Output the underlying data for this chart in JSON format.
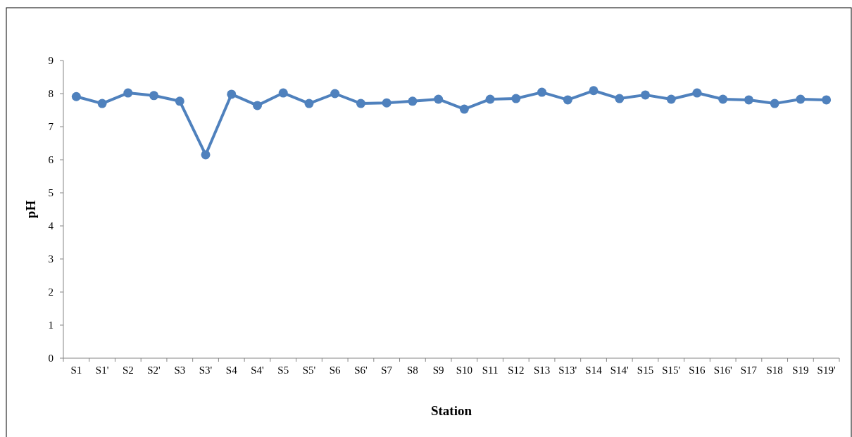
{
  "chart_data": {
    "type": "line",
    "xlabel": "Station",
    "ylabel": "pH",
    "categories": [
      "S1",
      "S1'",
      "S2",
      "S2'",
      "S3",
      "S3'",
      "S4",
      "S4'",
      "S5",
      "S5'",
      "S6",
      "S6'",
      "S7",
      "S8",
      "S9",
      "S10",
      "S11",
      "S12",
      "S13",
      "S13'",
      "S14",
      "S14'",
      "S15",
      "S15'",
      "S16",
      "S16'",
      "S17",
      "S18",
      "S19",
      "S19'"
    ],
    "series": [
      {
        "color": "#4f81bd",
        "values": [
          7.91,
          7.7,
          8.02,
          7.94,
          7.77,
          6.15,
          7.98,
          7.64,
          8.02,
          7.7,
          8.0,
          7.7,
          7.72,
          7.77,
          7.83,
          7.53,
          7.83,
          7.85,
          8.04,
          7.81,
          8.09,
          7.85,
          7.96,
          7.83,
          8.02,
          7.83,
          7.81,
          7.7,
          7.83,
          7.81
        ]
      }
    ],
    "ylim": [
      0,
      9
    ],
    "yticks": [
      0,
      1,
      2,
      3,
      4,
      5,
      6,
      7,
      8,
      9
    ],
    "marker": "circle",
    "line_style": "solid",
    "grid": false
  }
}
